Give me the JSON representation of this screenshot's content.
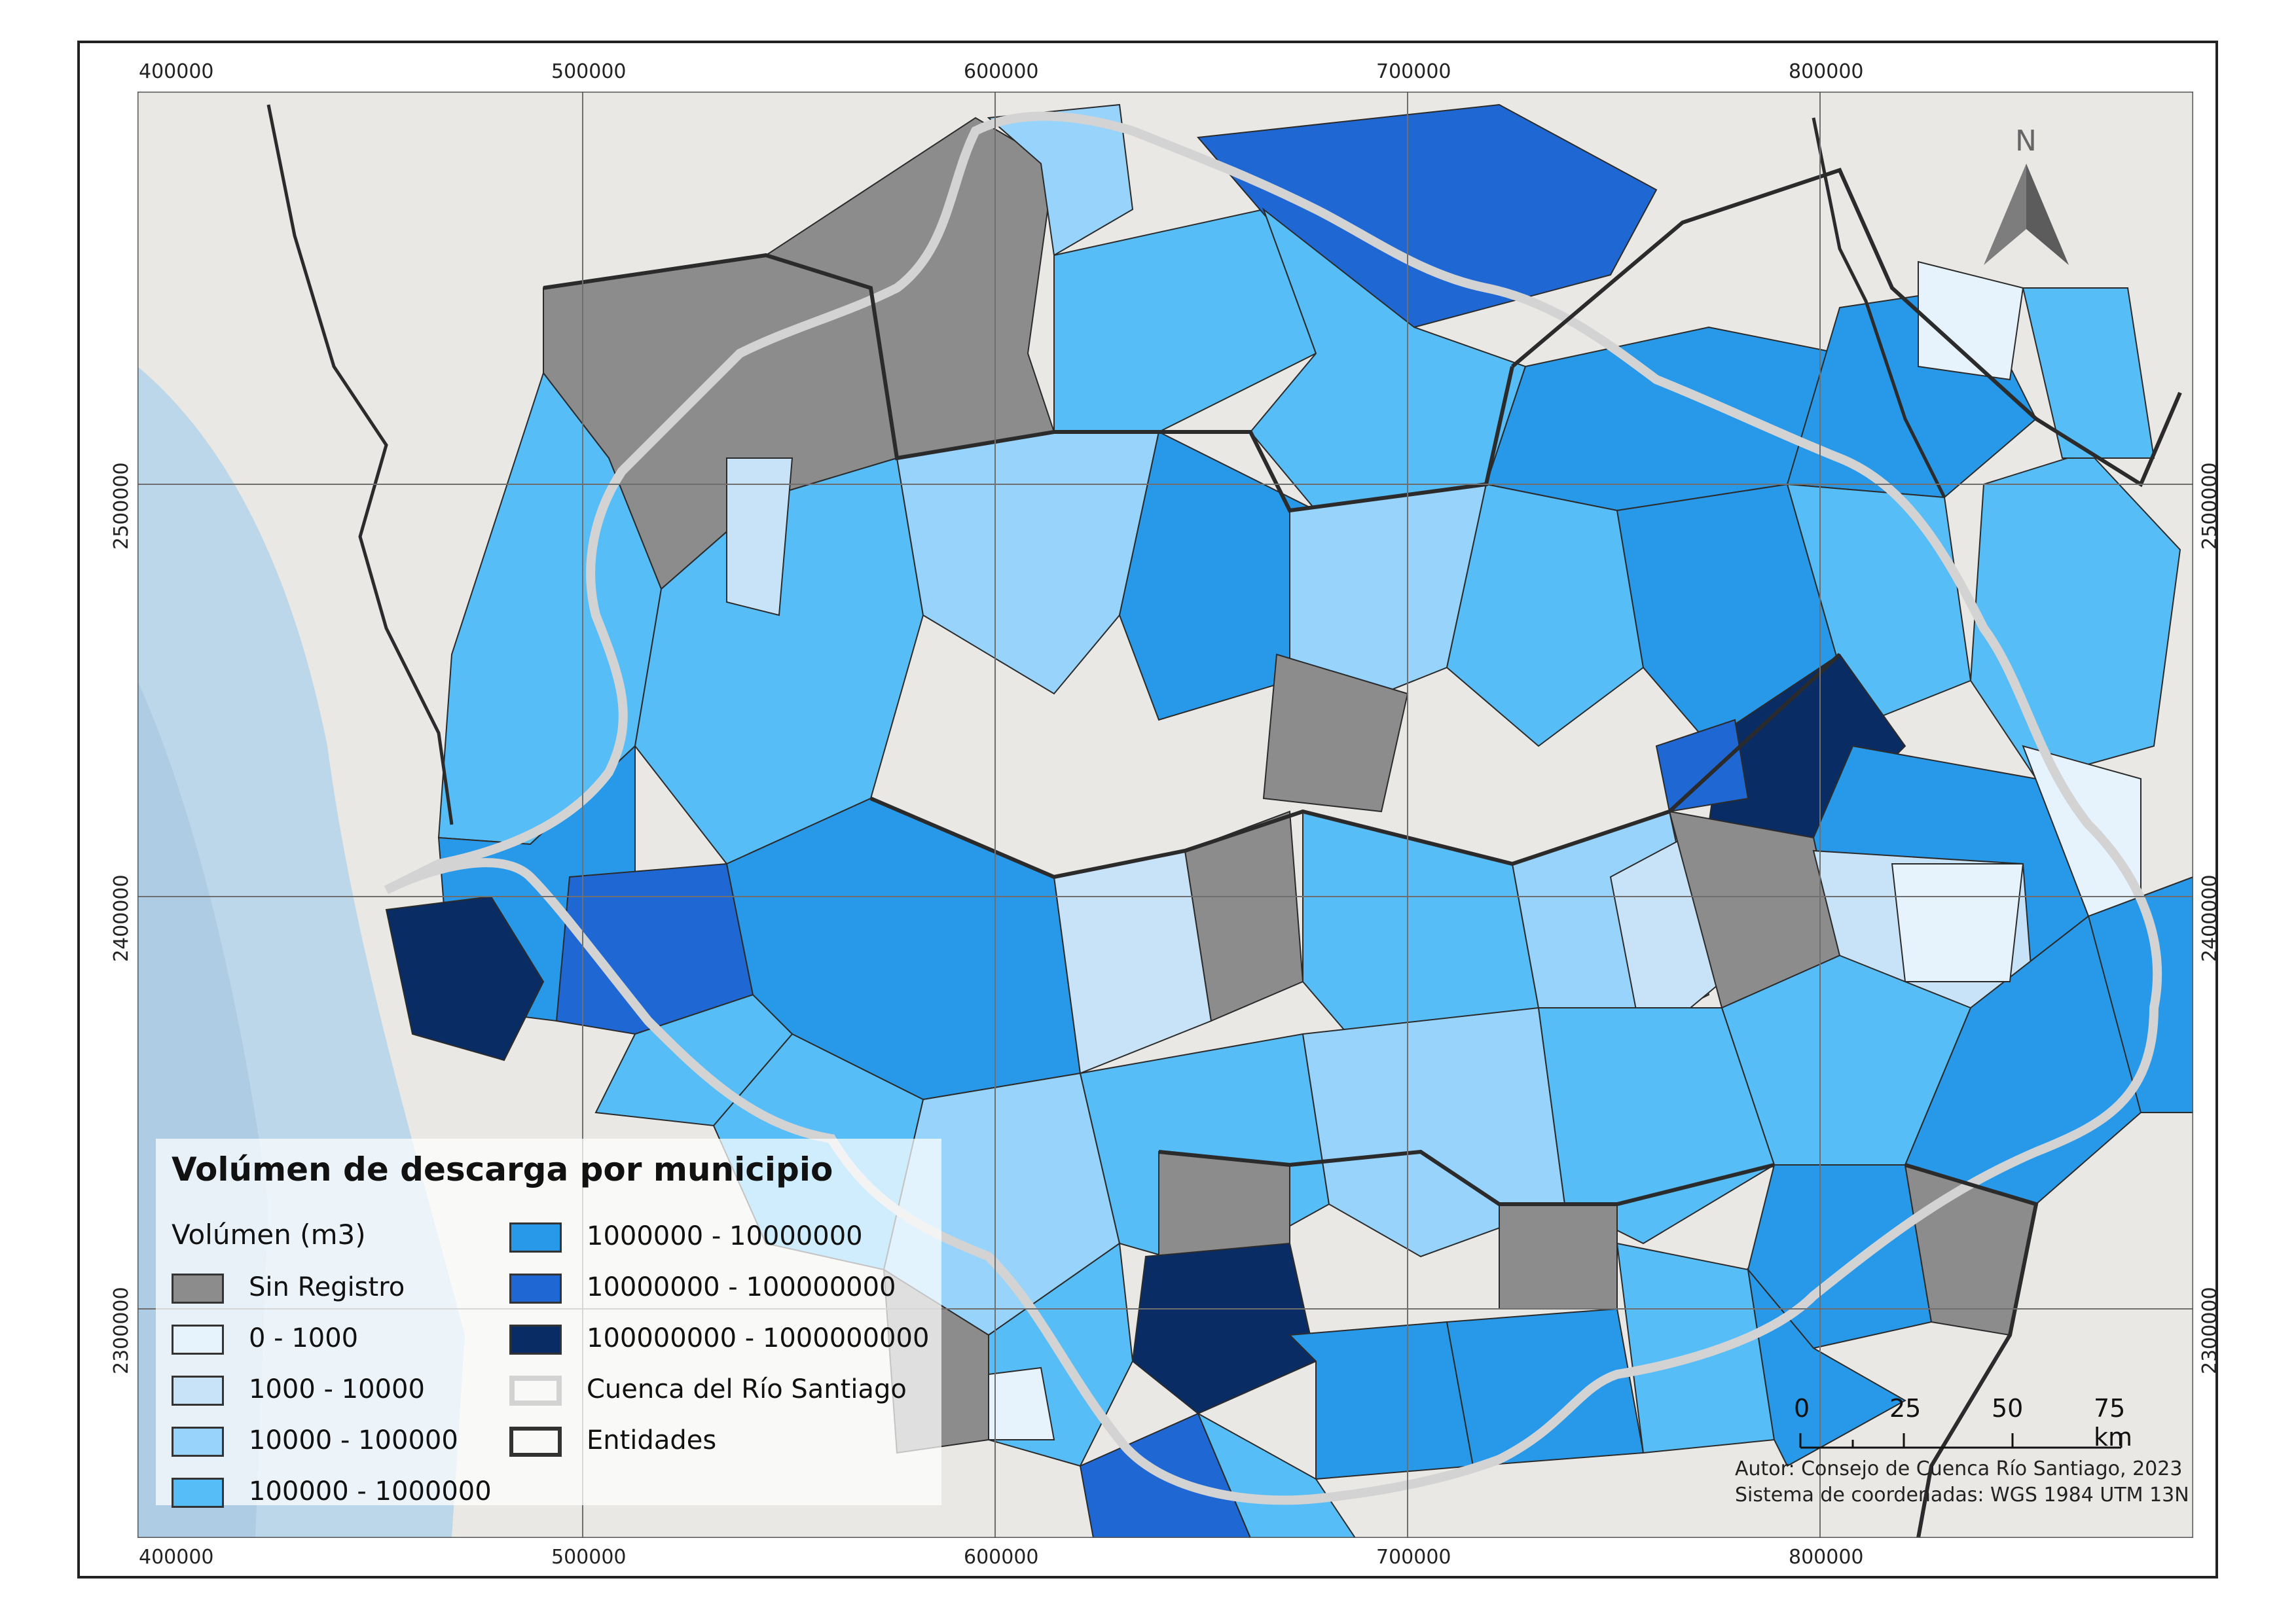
{
  "map": {
    "axes": {
      "x_ticks": [
        "400000",
        "500000",
        "600000",
        "700000",
        "800000"
      ],
      "y_ticks": [
        "2500000",
        "2400000",
        "2300000"
      ]
    },
    "legend": {
      "title": "Volúmen de descarga por municipio",
      "subtitle": "Volúmen (m3)",
      "items": [
        {
          "label": "Sin Registro",
          "color": "#8c8c8c"
        },
        {
          "label": "0 - 1000",
          "color": "#e6f2fc"
        },
        {
          "label": "1000 - 10000",
          "color": "#c8e3f8"
        },
        {
          "label": "10000 - 100000",
          "color": "#97d3fb"
        },
        {
          "label": "100000 - 1000000",
          "color": "#56bdf7"
        },
        {
          "label": "1000000 - 10000000",
          "color": "#2799e8"
        },
        {
          "label": "10000000 - 100000000",
          "color": "#1f67d2"
        },
        {
          "label": "100000000 - 1000000000",
          "color": "#0a2c64"
        },
        {
          "label": "Cuenca del Río Santiago",
          "color": "#d4d4d4"
        },
        {
          "label": "Entidades",
          "color": "#333333"
        }
      ]
    },
    "north_arrow": "N",
    "scale": {
      "labels": [
        "0",
        "25",
        "50",
        "75 km"
      ]
    },
    "credits": {
      "author": "Autor: Consejo de Cuenca Río Santiago, 2023",
      "crs": "Sistema de coordenadas: WGS 1984 UTM 13N"
    },
    "colors": {
      "land": "#e9e8e4",
      "ocean": "#bcd6ea",
      "ocean_deep": "#a9c8e3",
      "basin_outline": "#d3d3d3",
      "state_border": "#2b2b2b"
    }
  }
}
